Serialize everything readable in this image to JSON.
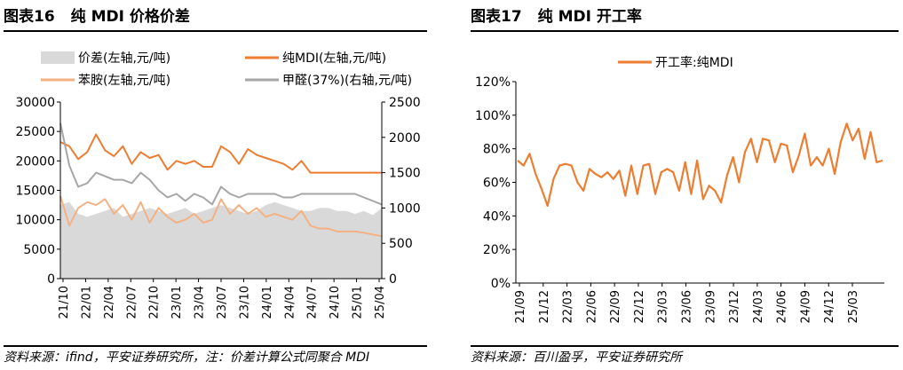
{
  "left": {
    "figure_no": "图表16",
    "figure_title": "纯 MDI 价格价差",
    "source": "资料来源：ifind，平安证券研究所，注：价差计算公式同聚合 MDI"
  },
  "right": {
    "figure_no": "图表17",
    "figure_title": "纯 MDI 开工率",
    "source": "资料来源：百川盈孚，平安证券研究所"
  },
  "chart_data": [
    {
      "type": "line",
      "title": "纯 MDI 价格价差",
      "colors": {
        "spread": "#d9d9d9",
        "mdi": "#ed7d31",
        "aniline": "#f4b183",
        "formaldehyde": "#a6a6a6"
      },
      "y_left": {
        "min": 0,
        "max": 30000,
        "ticks": [
          "0",
          "5000",
          "10000",
          "15000",
          "20000",
          "25000",
          "30000"
        ]
      },
      "y_right": {
        "min": 0,
        "max": 2500,
        "ticks": [
          "0",
          "500",
          "1000",
          "1500",
          "2000",
          "2500"
        ]
      },
      "x_ticks": [
        "21/10",
        "22/01",
        "22/04",
        "22/07",
        "22/10",
        "23/01",
        "23/04",
        "23/07",
        "23/10",
        "24/01",
        "24/04",
        "24/07",
        "24/10",
        "25/01",
        "25/04"
      ],
      "series": [
        {
          "key": "spread",
          "name": "价差(左轴,元/吨)",
          "axis": "left",
          "style": "area",
          "values": [
            12500,
            13000,
            11000,
            10500,
            11000,
            11500,
            12000,
            10500,
            11000,
            11500,
            12000,
            11500,
            11000,
            11500,
            12000,
            11000,
            11500,
            12000,
            12500,
            12000,
            11500,
            11000,
            11500,
            12500,
            13000,
            12500,
            12000,
            11500,
            11500,
            12000,
            12000,
            11500,
            11500,
            11000,
            11500,
            10800,
            12000
          ]
        },
        {
          "key": "mdi",
          "name": "纯MDI(左轴,元/吨)",
          "axis": "left",
          "style": "line",
          "values": [
            23200,
            22500,
            20300,
            21500,
            24500,
            21800,
            20800,
            22500,
            19500,
            21500,
            20500,
            21000,
            18500,
            20000,
            19500,
            20000,
            19000,
            19000,
            22500,
            21500,
            19500,
            22000,
            21000,
            20500,
            20000,
            19500,
            18500,
            20000,
            18000,
            18000,
            18000,
            18000,
            18000,
            18000,
            18000,
            18000,
            18000
          ]
        },
        {
          "key": "aniline",
          "name": "苯胺(左轴,元/吨)",
          "axis": "left",
          "style": "line",
          "values": [
            14000,
            9000,
            12000,
            13000,
            12500,
            13500,
            11000,
            12500,
            10000,
            13000,
            9500,
            12000,
            10500,
            9500,
            10000,
            11000,
            9500,
            10000,
            13500,
            11000,
            12500,
            11000,
            12000,
            10500,
            11000,
            10500,
            10000,
            11500,
            9000,
            8500,
            8500,
            8000,
            8000,
            8000,
            7800,
            7500,
            7200
          ]
        },
        {
          "key": "formaldehyde",
          "name": "甲醛(37%)(右轴,元/吨)",
          "axis": "right",
          "style": "line",
          "values": [
            2200,
            1600,
            1300,
            1350,
            1500,
            1450,
            1400,
            1400,
            1350,
            1500,
            1400,
            1250,
            1150,
            1200,
            1100,
            1200,
            1150,
            1050,
            1300,
            1200,
            1150,
            1200,
            1200,
            1200,
            1200,
            1150,
            1150,
            1200,
            1200,
            1200,
            1200,
            1200,
            1200,
            1200,
            1150,
            1100,
            1050
          ]
        }
      ]
    },
    {
      "type": "line",
      "title": "纯 MDI 开工率",
      "colors": {
        "rate": "#ed7d31"
      },
      "y_axis": {
        "min": 0,
        "max": 120,
        "ticks": [
          "0%",
          "20%",
          "40%",
          "60%",
          "80%",
          "100%",
          "120%"
        ]
      },
      "x_ticks": [
        "21/09",
        "21/12",
        "22/03",
        "22/06",
        "22/09",
        "22/12",
        "23/03",
        "23/06",
        "23/09",
        "23/12",
        "24/03",
        "24/06",
        "24/09",
        "24/12",
        "25/03"
      ],
      "series": [
        {
          "key": "rate",
          "name": "开工率:纯MDI",
          "values": [
            73,
            70,
            77,
            65,
            56,
            46,
            62,
            70,
            71,
            70,
            60,
            55,
            68,
            65,
            63,
            66,
            62,
            67,
            52,
            70,
            53,
            70,
            71,
            53,
            66,
            68,
            66,
            55,
            72,
            53,
            73,
            50,
            58,
            55,
            48,
            64,
            75,
            60,
            78,
            86,
            72,
            86,
            85,
            72,
            83,
            82,
            66,
            76,
            89,
            70,
            75,
            70,
            80,
            65,
            84,
            95,
            85,
            92,
            74,
            90,
            72,
            73
          ]
        }
      ]
    }
  ]
}
